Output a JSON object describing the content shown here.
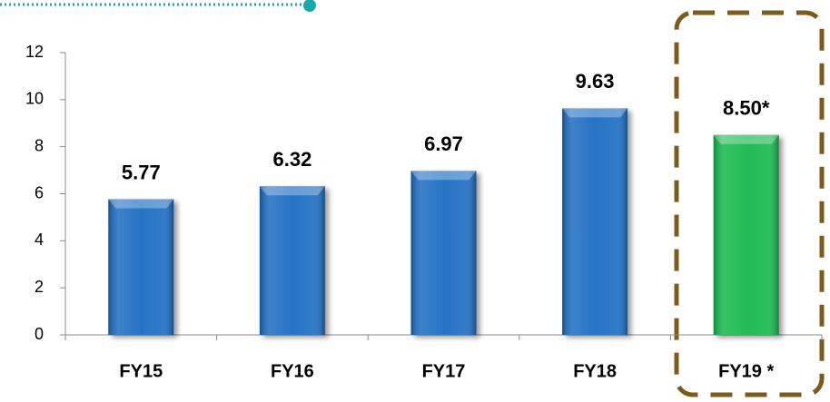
{
  "chart_data": {
    "type": "bar",
    "categories": [
      "FY15",
      "FY16",
      "FY17",
      "FY18",
      "FY19 *"
    ],
    "values": [
      5.77,
      6.32,
      6.97,
      9.63,
      8.5
    ],
    "value_labels": [
      "5.77",
      "6.32",
      "6.97",
      "9.63",
      "8.50*"
    ],
    "colors": [
      "#1f6cc2",
      "#1f6cc2",
      "#1f6cc2",
      "#1f6cc2",
      "#16b84e"
    ],
    "ylim": [
      0,
      12
    ],
    "yticks": [
      0,
      2,
      4,
      6,
      8,
      10,
      12
    ],
    "grid": false
  }
}
